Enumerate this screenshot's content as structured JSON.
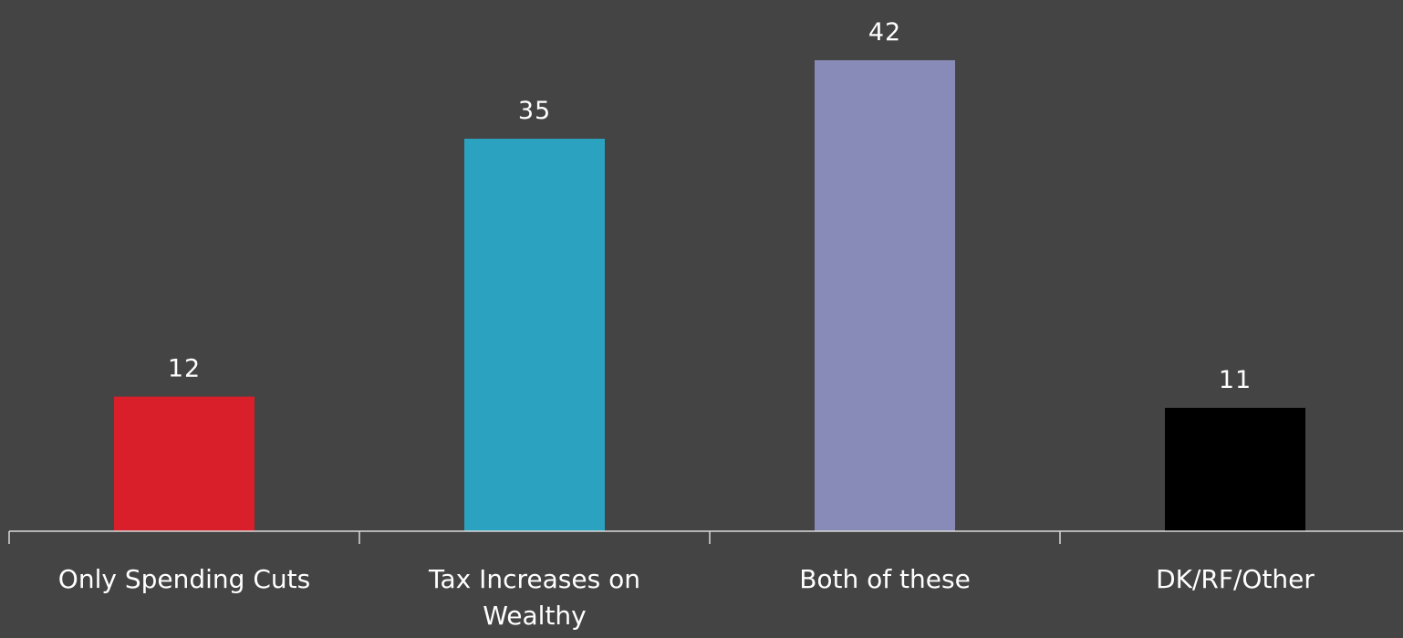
{
  "chart_data": {
    "type": "bar",
    "categories": [
      [
        "Only Spending Cuts"
      ],
      [
        "Tax Increases on",
        "Wealthy"
      ],
      [
        "Both of these"
      ],
      [
        "DK/RF/Other"
      ]
    ],
    "values": [
      12,
      35,
      42,
      11
    ],
    "bar_colors": [
      "#d91f29",
      "#2aa2c0",
      "#888bb8",
      "#000000"
    ],
    "ylim": [
      0,
      45
    ],
    "data_labels": true,
    "grid": false,
    "legend": false
  }
}
